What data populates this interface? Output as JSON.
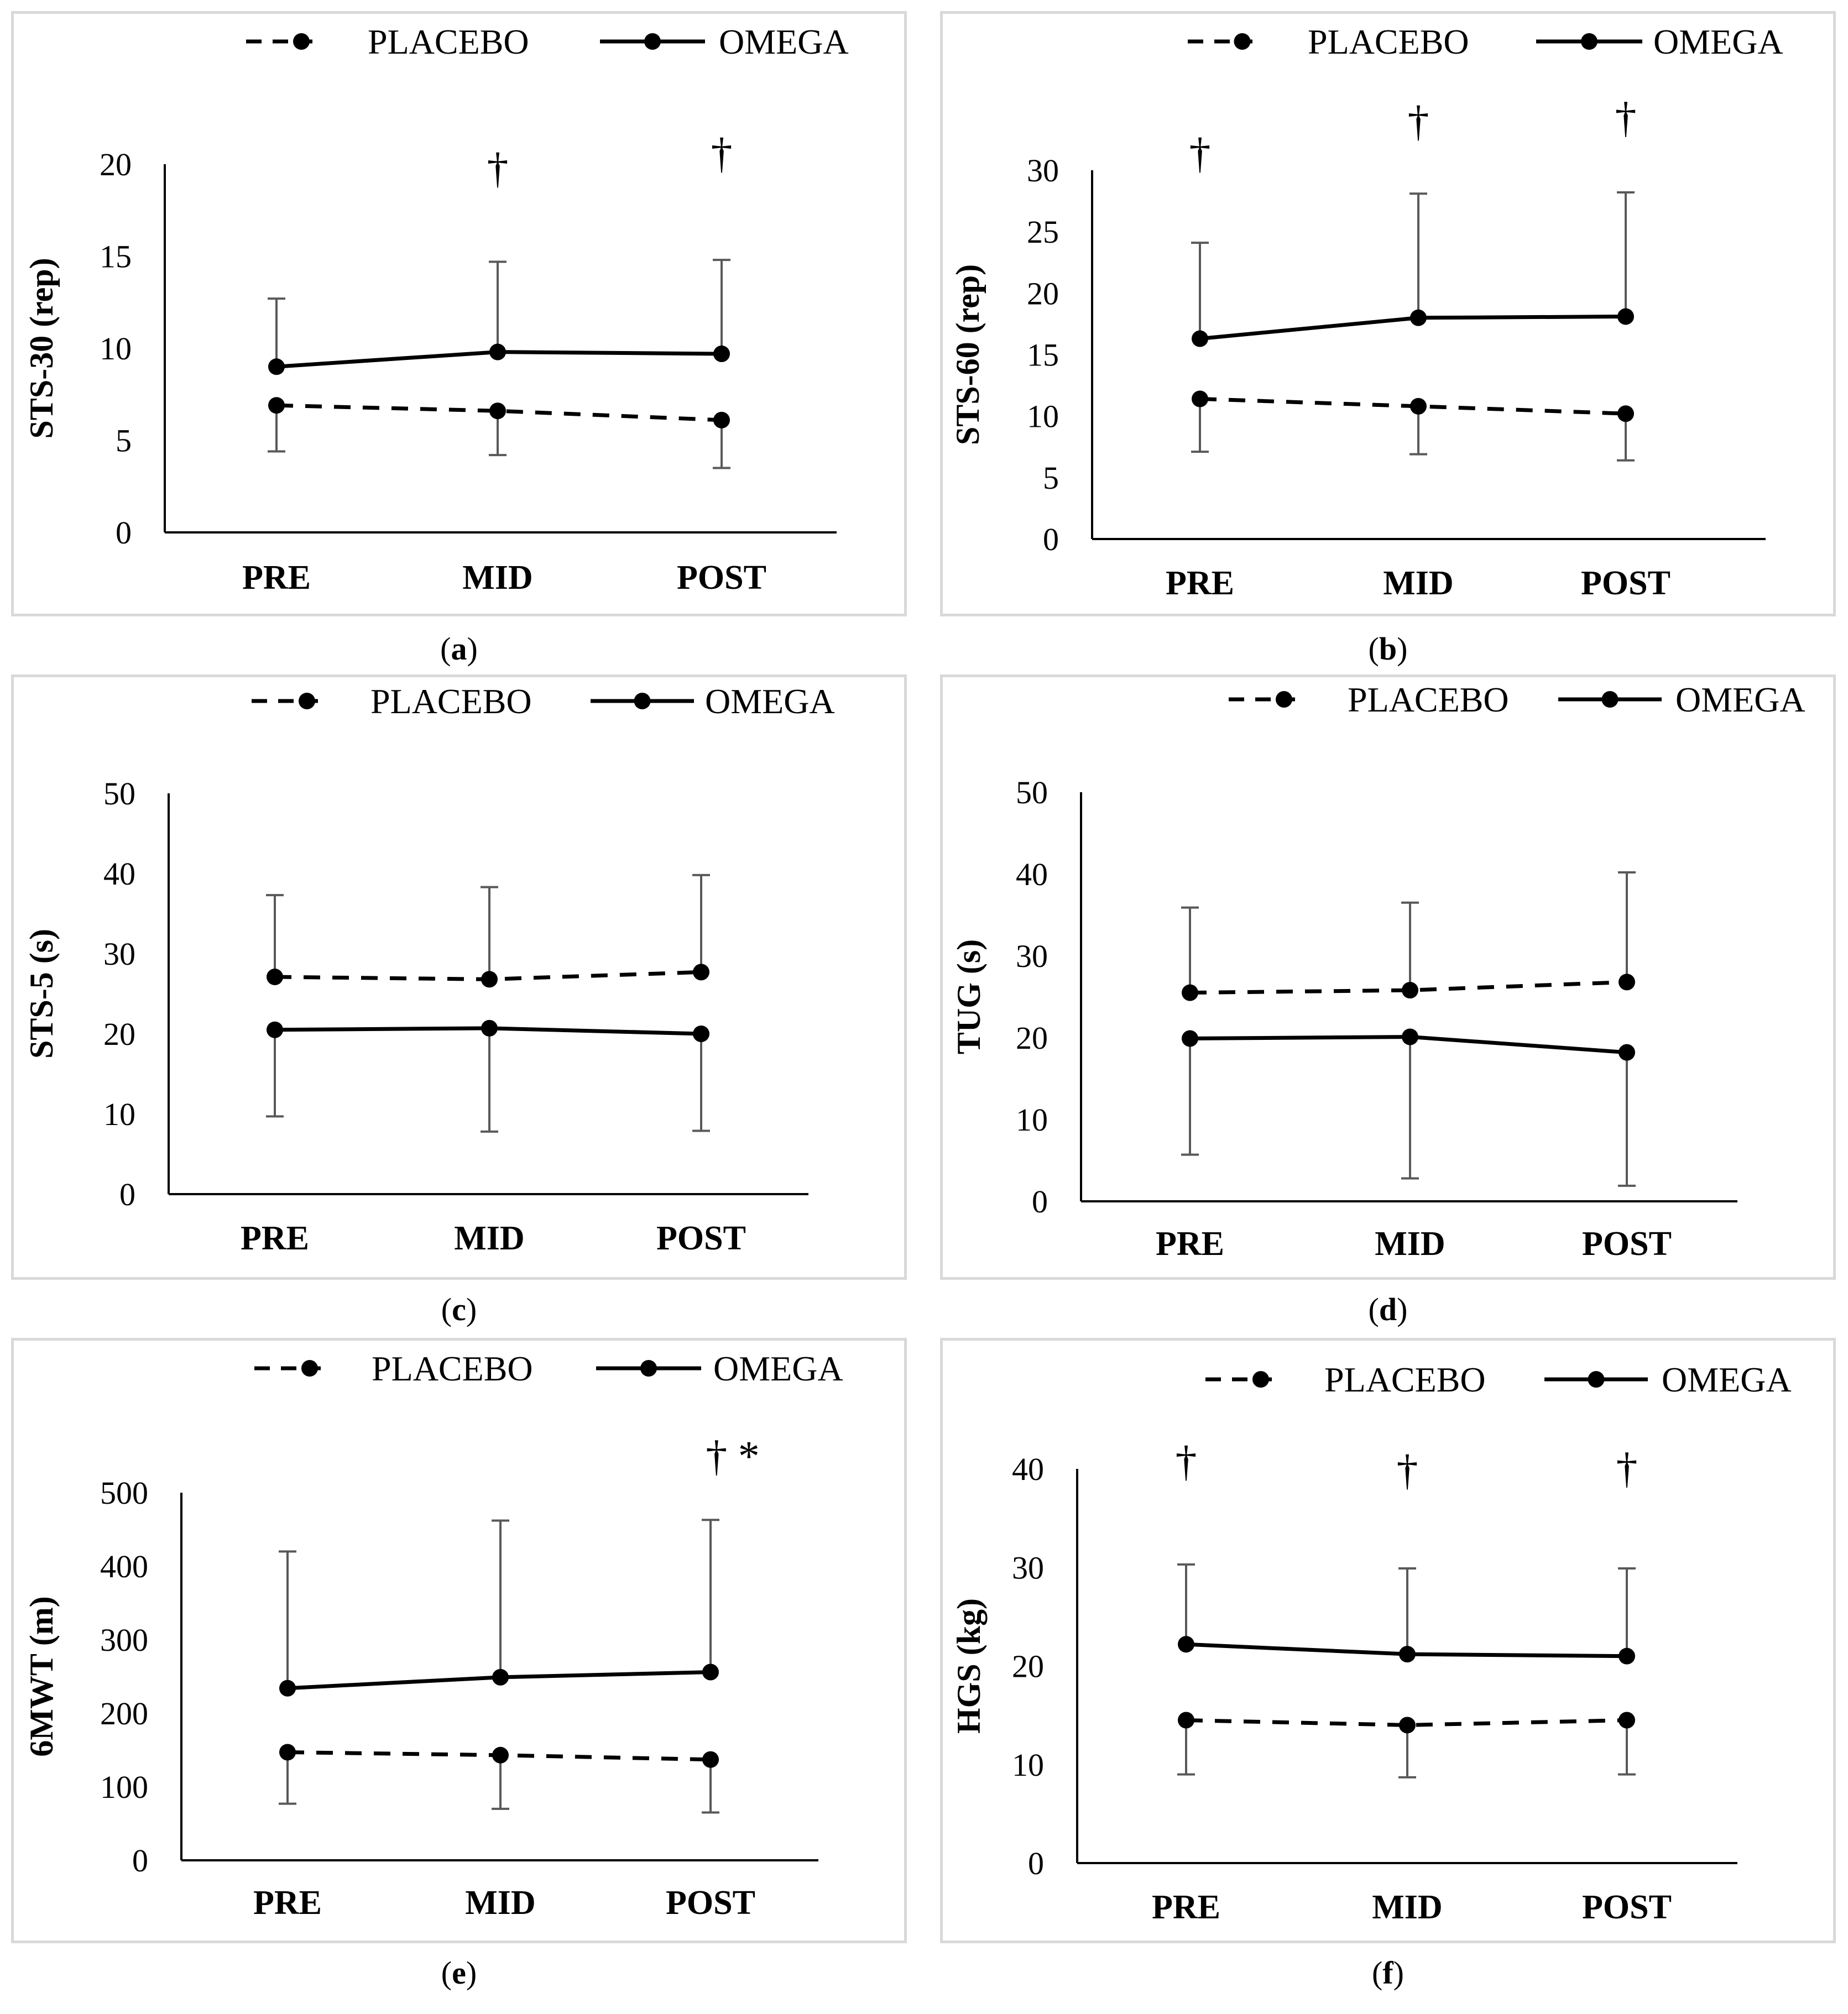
{
  "legend": {
    "placebo_label": "PLACEBO",
    "omega_label": "OMEGA"
  },
  "colors": {
    "line": "#000000",
    "errorbar": "#595959",
    "axis": "#000000",
    "frame": "#d9d9d9"
  },
  "chart_data": [
    {
      "id": "a",
      "caption": "a",
      "type": "line",
      "ylabel": "STS-30 (rep)",
      "categories": [
        "PRE",
        "MID",
        "POST"
      ],
      "ylim": [
        0,
        20
      ],
      "yticks": [
        0,
        5,
        10,
        15,
        20
      ],
      "series": [
        {
          "name": "PLACEBO",
          "style": "dashed",
          "values": [
            6.9,
            6.6,
            6.1
          ],
          "err_low": [
            4.4,
            4.2,
            3.5
          ],
          "err_high": [
            null,
            null,
            null
          ]
        },
        {
          "name": "OMEGA",
          "style": "solid",
          "values": [
            9.0,
            9.8,
            9.7
          ],
          "err_low": [
            null,
            null,
            null
          ],
          "err_high": [
            12.7,
            14.7,
            14.8
          ]
        }
      ],
      "annotations": [
        {
          "category": "MID",
          "text": "†",
          "y": 19.0
        },
        {
          "category": "POST",
          "text": "†",
          "y": 19.8
        }
      ]
    },
    {
      "id": "b",
      "caption": "b",
      "type": "line",
      "ylabel": "STS-60 (rep)",
      "categories": [
        "PRE",
        "MID",
        "POST"
      ],
      "ylim": [
        0,
        30
      ],
      "yticks": [
        0,
        5,
        10,
        15,
        20,
        25,
        30
      ],
      "series": [
        {
          "name": "PLACEBO",
          "style": "dashed",
          "values": [
            11.4,
            10.8,
            10.2
          ],
          "err_low": [
            7.1,
            6.9,
            6.4
          ],
          "err_high": [
            null,
            null,
            null
          ]
        },
        {
          "name": "OMEGA",
          "style": "solid",
          "values": [
            16.3,
            18.0,
            18.1
          ],
          "err_low": [
            null,
            null,
            null
          ],
          "err_high": [
            24.1,
            28.1,
            28.2
          ]
        }
      ],
      "annotations": [
        {
          "category": "PRE",
          "text": "†",
          "y": 30.2
        },
        {
          "category": "MID",
          "text": "†",
          "y": 32.8
        },
        {
          "category": "POST",
          "text": "†",
          "y": 33.1
        }
      ]
    },
    {
      "id": "c",
      "caption": "c",
      "type": "line",
      "ylabel": "STS-5 (s)",
      "categories": [
        "PRE",
        "MID",
        "POST"
      ],
      "ylim": [
        0,
        50
      ],
      "yticks": [
        0,
        10,
        20,
        30,
        40,
        50
      ],
      "series": [
        {
          "name": "PLACEBO",
          "style": "dashed",
          "values": [
            27.1,
            26.8,
            27.7
          ],
          "err_low": [
            null,
            null,
            null
          ],
          "err_high": [
            37.3,
            38.3,
            39.8
          ]
        },
        {
          "name": "OMEGA",
          "style": "solid",
          "values": [
            20.5,
            20.7,
            20.0
          ],
          "err_low": [
            9.7,
            7.8,
            7.9
          ],
          "err_high": [
            null,
            null,
            null
          ]
        }
      ],
      "annotations": []
    },
    {
      "id": "d",
      "caption": "d",
      "type": "line",
      "ylabel": "TUG (s)",
      "categories": [
        "PRE",
        "MID",
        "POST"
      ],
      "ylim": [
        0,
        50
      ],
      "yticks": [
        0,
        10,
        20,
        30,
        40,
        50
      ],
      "series": [
        {
          "name": "PLACEBO",
          "style": "dashed",
          "values": [
            25.5,
            25.8,
            26.8
          ],
          "err_low": [
            null,
            null,
            null
          ],
          "err_high": [
            35.9,
            36.5,
            40.2
          ]
        },
        {
          "name": "OMEGA",
          "style": "solid",
          "values": [
            19.9,
            20.1,
            18.2
          ],
          "err_low": [
            5.7,
            2.8,
            1.9
          ],
          "err_high": [
            null,
            null,
            null
          ]
        }
      ],
      "annotations": []
    },
    {
      "id": "e",
      "caption": "e",
      "type": "line",
      "ylabel": "6MWT (m)",
      "categories": [
        "PRE",
        "MID",
        "POST"
      ],
      "ylim": [
        0,
        500
      ],
      "yticks": [
        0,
        100,
        200,
        300,
        400,
        500
      ],
      "series": [
        {
          "name": "PLACEBO",
          "style": "dashed",
          "values": [
            147,
            143,
            137
          ],
          "err_low": [
            77,
            70,
            65
          ],
          "err_high": [
            null,
            null,
            null
          ]
        },
        {
          "name": "OMEGA",
          "style": "solid",
          "values": [
            234,
            249,
            256
          ],
          "err_low": [
            null,
            null,
            null
          ],
          "err_high": [
            420,
            462,
            463
          ]
        }
      ],
      "annotations": [
        {
          "category": "POST",
          "text": "† *",
          "y": 530
        }
      ]
    },
    {
      "id": "f",
      "caption": "f",
      "type": "line",
      "ylabel": "HGS (kg)",
      "categories": [
        "PRE",
        "MID",
        "POST"
      ],
      "ylim": [
        0,
        40
      ],
      "yticks": [
        0,
        10,
        20,
        30,
        40
      ],
      "series": [
        {
          "name": "PLACEBO",
          "style": "dashed",
          "values": [
            14.5,
            14.0,
            14.5
          ],
          "err_low": [
            9.0,
            8.7,
            9.0
          ],
          "err_high": [
            null,
            null,
            null
          ]
        },
        {
          "name": "OMEGA",
          "style": "solid",
          "values": [
            22.2,
            21.2,
            21.0
          ],
          "err_low": [
            null,
            null,
            null
          ],
          "err_high": [
            30.3,
            29.9,
            29.9
          ]
        }
      ],
      "annotations": [
        {
          "category": "PRE",
          "text": "†",
          "y": 39.3
        },
        {
          "category": "MID",
          "text": "†",
          "y": 38.4
        },
        {
          "category": "POST",
          "text": "†",
          "y": 38.6
        }
      ]
    }
  ]
}
